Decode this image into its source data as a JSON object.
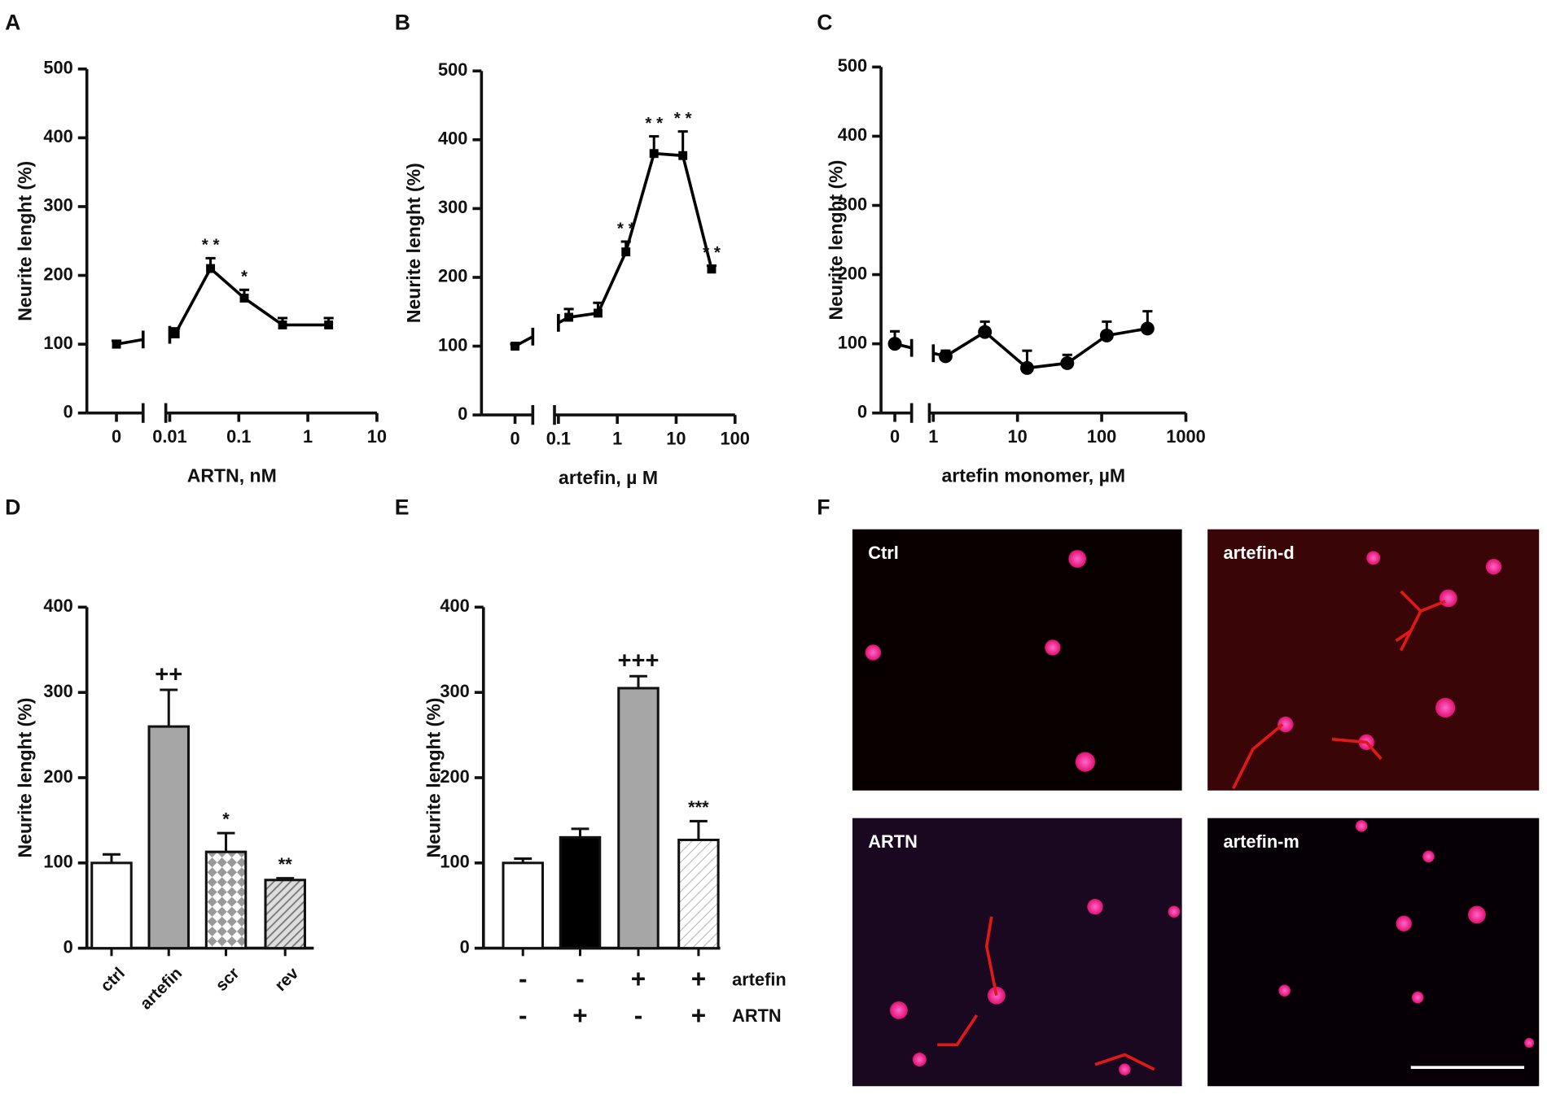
{
  "chart_data": [
    {
      "panel": "A",
      "type": "line",
      "y_label": "Neurite lenght (%)",
      "x_label": "ARTN, nM",
      "xscale": "log",
      "xbreak": 0.01,
      "marker": "square",
      "x": [
        0,
        0.012,
        0.039,
        0.12,
        0.43,
        2.0
      ],
      "series": [
        {
          "color": "#000000",
          "values": [
            100,
            115,
            210,
            167,
            128,
            128
          ],
          "errors": [
            5,
            8,
            15,
            12,
            10,
            10
          ],
          "annotations": [
            null,
            null,
            "* *",
            "*",
            null,
            null
          ]
        }
      ],
      "xlim": [
        0,
        10
      ],
      "xticks": [
        0,
        0.01,
        0.1,
        1,
        10
      ],
      "ylim": [
        0,
        500
      ],
      "yticks": [
        0,
        100,
        200,
        300,
        400,
        500
      ]
    },
    {
      "panel": "B",
      "type": "line",
      "y_label": "Neurite lenght (%)",
      "x_label": "artefin, µ M",
      "xscale": "log",
      "xbreak": 0.1,
      "marker": "square",
      "x": [
        0,
        0.15,
        0.47,
        1.4,
        4.2,
        13,
        40
      ],
      "series": [
        {
          "color": "#000000",
          "values": [
            100,
            142,
            148,
            237,
            380,
            377,
            212
          ],
          "errors": [
            3,
            12,
            15,
            15,
            25,
            35,
            5
          ],
          "annotations": [
            null,
            null,
            null,
            "* *",
            "* *",
            "* *",
            "* *"
          ]
        }
      ],
      "xlim": [
        0,
        100
      ],
      "xticks": [
        0,
        0.1,
        1,
        10,
        100
      ],
      "ylim": [
        0,
        500
      ],
      "yticks": [
        0,
        100,
        200,
        300,
        400,
        500
      ]
    },
    {
      "panel": "C",
      "type": "line",
      "y_label": "Neurite lenght (%)",
      "x_label": "artefin monomer, µM",
      "xscale": "log",
      "xbreak": 1,
      "marker": "circle",
      "x": [
        0,
        1.4,
        4.1,
        13,
        39,
        115,
        350
      ],
      "series": [
        {
          "color": "#000000",
          "values": [
            100,
            82,
            117,
            65,
            72,
            112,
            122
          ],
          "errors": [
            18,
            8,
            15,
            25,
            12,
            20,
            25
          ],
          "annotations": [
            null,
            null,
            null,
            null,
            null,
            null,
            null
          ]
        }
      ],
      "xlim": [
        0,
        1000
      ],
      "xticks": [
        0,
        1,
        10,
        100,
        1000
      ],
      "ylim": [
        0,
        500
      ],
      "yticks": [
        0,
        100,
        200,
        300,
        400,
        500
      ]
    },
    {
      "panel": "D",
      "type": "bar",
      "y_label": "Neurite lenght (%)",
      "categories": [
        "ctrl",
        "artefin",
        "scr",
        "rev"
      ],
      "values": [
        100,
        260,
        113,
        80
      ],
      "errors": [
        10,
        43,
        22,
        2
      ],
      "annotations": [
        null,
        "++",
        "*",
        "**"
      ],
      "colors": [
        "#ffffff",
        "#a6a6a6",
        "#ffffff",
        "#c8c8c8"
      ],
      "patterns": [
        null,
        null,
        "dots",
        "hatch"
      ],
      "ylim": [
        0,
        400
      ],
      "yticks": [
        0,
        100,
        200,
        300,
        400
      ]
    },
    {
      "panel": "E",
      "type": "bar",
      "y_label": "Neurite lenght (%)",
      "rows": [
        {
          "name": "artefin",
          "labels": [
            "-",
            "-",
            "+",
            "+"
          ]
        },
        {
          "name": "ARTN",
          "labels": [
            "-",
            "+",
            "-",
            "+"
          ]
        }
      ],
      "values": [
        100,
        130,
        305,
        127
      ],
      "errors": [
        5,
        10,
        14,
        22
      ],
      "annotations": [
        null,
        null,
        "+++",
        "***"
      ],
      "colors": [
        "#ffffff",
        "#000000",
        "#a6a6a6",
        "#ffffff"
      ],
      "patterns": [
        null,
        null,
        null,
        "hatch-light"
      ],
      "ylim": [
        0,
        400
      ],
      "yticks": [
        0,
        100,
        200,
        300,
        400
      ]
    }
  ],
  "figure_f": {
    "panel": "F",
    "images": [
      {
        "label": "Ctrl"
      },
      {
        "label": "artefin-d"
      },
      {
        "label": "ARTN"
      },
      {
        "label": "artefin-m"
      }
    ]
  }
}
